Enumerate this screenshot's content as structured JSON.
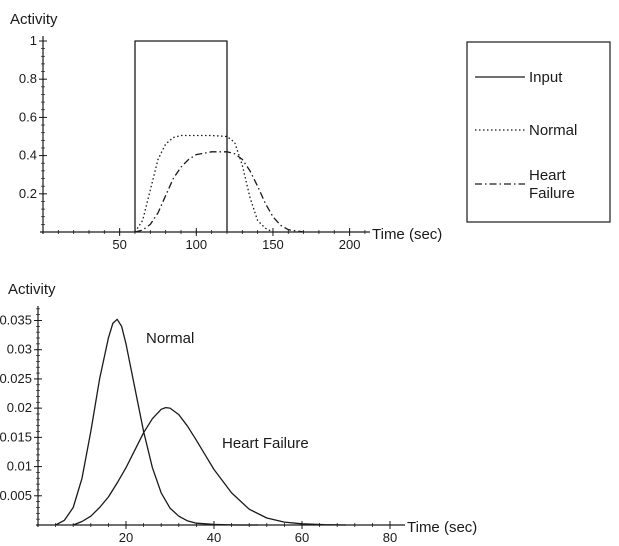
{
  "chart_data": [
    {
      "type": "line",
      "ylabel": "Activity",
      "xlabel": "Time (sec)",
      "xlim": [
        0,
        210
      ],
      "ylim": [
        0,
        1
      ],
      "x_ticks": [
        50,
        100,
        150,
        200
      ],
      "y_ticks": [
        0.2,
        0.4,
        0.6,
        0.8,
        1
      ],
      "y_tick_labels": [
        "0.2",
        "0.4",
        "0.6",
        "0.8",
        "1"
      ],
      "legend": {
        "placement": "right",
        "entries": [
          {
            "label": "Input",
            "style": "solid"
          },
          {
            "label": "Normal",
            "style": "dotted"
          },
          {
            "label": "Heart\nFailure",
            "style": "dashdot"
          }
        ]
      },
      "series": [
        {
          "name": "Input",
          "style": "solid",
          "x": [
            60,
            60,
            120,
            120
          ],
          "y": [
            0,
            1,
            1,
            0
          ]
        },
        {
          "name": "Normal",
          "style": "dotted",
          "x": [
            60,
            65,
            70,
            75,
            80,
            85,
            90,
            100,
            110,
            120,
            125,
            130,
            135,
            140,
            145,
            150
          ],
          "y": [
            0,
            0.06,
            0.22,
            0.38,
            0.46,
            0.495,
            0.505,
            0.505,
            0.505,
            0.5,
            0.47,
            0.35,
            0.18,
            0.06,
            0.02,
            0
          ]
        },
        {
          "name": "Heart Failure",
          "style": "dashdot",
          "x": [
            60,
            65,
            70,
            75,
            80,
            85,
            90,
            95,
            100,
            110,
            120,
            125,
            130,
            135,
            140,
            145,
            150,
            155,
            160,
            170
          ],
          "y": [
            0,
            0.01,
            0.04,
            0.1,
            0.19,
            0.28,
            0.34,
            0.38,
            0.405,
            0.42,
            0.42,
            0.41,
            0.38,
            0.32,
            0.24,
            0.15,
            0.08,
            0.035,
            0.012,
            0
          ]
        }
      ]
    },
    {
      "type": "line",
      "ylabel": "Activity",
      "xlabel": "Time (sec)",
      "xlim": [
        0,
        80
      ],
      "ylim": [
        0,
        0.037
      ],
      "x_ticks": [
        20,
        40,
        60,
        80
      ],
      "y_ticks": [
        0.005,
        0.01,
        0.015,
        0.02,
        0.025,
        0.03,
        0.035
      ],
      "y_tick_labels": [
        "0.005",
        "0.01",
        "0.015",
        "0.02",
        "0.025",
        "0.03",
        "0.035"
      ],
      "annotations": [
        "Normal",
        "Heart Failure"
      ],
      "series": [
        {
          "name": "Normal",
          "x": [
            4,
            6,
            8,
            10,
            12,
            14,
            16,
            17,
            18,
            19,
            20,
            22,
            24,
            26,
            28,
            30,
            32,
            34,
            36,
            40,
            45,
            50
          ],
          "y": [
            0,
            0.0008,
            0.003,
            0.008,
            0.016,
            0.025,
            0.032,
            0.0345,
            0.0352,
            0.034,
            0.031,
            0.0235,
            0.016,
            0.0098,
            0.0055,
            0.0029,
            0.0015,
            0.0007,
            0.0003,
            0.0001,
            0,
            0
          ]
        },
        {
          "name": "Heart Failure",
          "x": [
            8,
            10,
            12,
            14,
            16,
            18,
            20,
            22,
            24,
            26,
            28,
            29,
            30,
            32,
            34,
            36,
            38,
            40,
            44,
            48,
            52,
            56,
            60,
            65,
            70
          ],
          "y": [
            0,
            0.0006,
            0.0015,
            0.003,
            0.0048,
            0.0072,
            0.0098,
            0.0128,
            0.0158,
            0.0182,
            0.0198,
            0.0201,
            0.02,
            0.0189,
            0.0169,
            0.0145,
            0.012,
            0.0095,
            0.0055,
            0.0027,
            0.0012,
            0.0005,
            0.0002,
            5e-05,
            0
          ]
        }
      ]
    }
  ]
}
